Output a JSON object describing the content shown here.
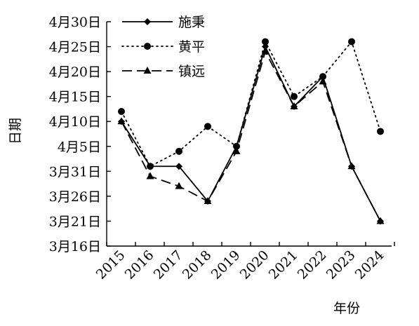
{
  "chart_data": {
    "type": "line",
    "xlabel": "年份",
    "ylabel": "日期",
    "categories": [
      "2015",
      "2016",
      "2017",
      "2018",
      "2019",
      "2020",
      "2021",
      "2022",
      "2023",
      "2024"
    ],
    "y_ticks": [
      "3月16日",
      "3月21日",
      "3月26日",
      "3月31日",
      "4月5日",
      "4月10日",
      "4月15日",
      "4月20日",
      "4月25日",
      "4月30日"
    ],
    "y_tick_values": [
      "03-16",
      "03-21",
      "03-26",
      "03-31",
      "04-05",
      "04-10",
      "04-15",
      "04-20",
      "04-25",
      "04-30"
    ],
    "ylim": [
      "03-16",
      "04-30"
    ],
    "legend_position": "top-left",
    "grid": false,
    "series": [
      {
        "name": "施秉",
        "line_style": "solid",
        "marker": "diamond",
        "color": "#000000",
        "values": [
          "04-10",
          "04-01",
          "04-01",
          "03-25",
          "04-05",
          "04-25",
          "04-13",
          "04-19",
          "04-01",
          "03-21"
        ]
      },
      {
        "name": "黄平",
        "line_style": "dotted",
        "marker": "circle",
        "color": "#000000",
        "values": [
          "04-12",
          "04-01",
          "04-04",
          "04-09",
          "04-05",
          "04-26",
          "04-15",
          "04-19",
          "04-26",
          "04-08"
        ]
      },
      {
        "name": "镇远",
        "line_style": "dashed",
        "marker": "triangle",
        "color": "#000000",
        "values": [
          "04-10",
          "03-30",
          "03-28",
          "03-25",
          "04-04",
          "04-24",
          "04-13",
          "04-18",
          "04-01",
          "03-21"
        ]
      }
    ]
  }
}
